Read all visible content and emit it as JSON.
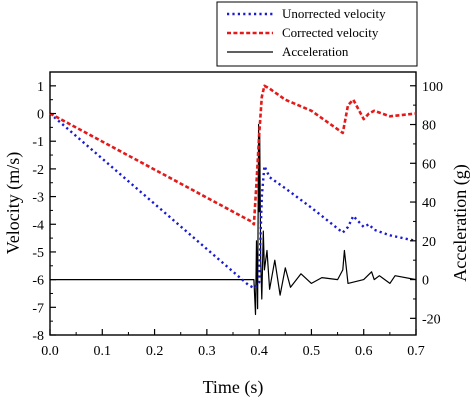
{
  "chart_data": {
    "type": "line",
    "title": "",
    "xlabel": "Time (s)",
    "ylabel_left": "Velocity (m/s)",
    "ylabel_right": "Acceleration (g)",
    "xlim": [
      0,
      0.7
    ],
    "ylim_left": [
      -8,
      1.5
    ],
    "ylim_right": [
      -28.6,
      107.1
    ],
    "x_ticks": [
      "0.0",
      "0.1",
      "0.2",
      "0.3",
      "0.4",
      "0.5",
      "0.6",
      "0.7"
    ],
    "y_left_ticks": [
      "1",
      "0",
      "-1",
      "-2",
      "-3",
      "-4",
      "-5",
      "-6",
      "-7",
      "-8"
    ],
    "y_right_ticks": [
      "100",
      "80",
      "60",
      "40",
      "20",
      "0",
      "-20"
    ],
    "grid": false,
    "legend_position": "top-right",
    "series": [
      {
        "name": "Unorrected velocity",
        "axis": "left",
        "color": "#1a1ad6",
        "style": "dotted",
        "x": [
          0,
          0.38,
          0.39,
          0.4,
          0.405,
          0.41,
          0.42,
          0.45,
          0.5,
          0.56,
          0.57,
          0.58,
          0.6,
          0.61,
          0.62,
          0.65,
          0.7
        ],
        "y": [
          0,
          -6.2,
          -6.3,
          -6.1,
          -3.0,
          -1.9,
          -2.3,
          -2.7,
          -3.4,
          -4.3,
          -4.1,
          -3.7,
          -4.1,
          -4.0,
          -4.2,
          -4.4,
          -4.6
        ]
      },
      {
        "name": "Corrected velocity",
        "axis": "left",
        "color": "#e41a1a",
        "style": "dashed",
        "x": [
          0,
          0.385,
          0.39,
          0.395,
          0.4,
          0.405,
          0.41,
          0.42,
          0.45,
          0.5,
          0.56,
          0.57,
          0.58,
          0.6,
          0.61,
          0.62,
          0.65,
          0.7
        ],
        "y": [
          0,
          -3.9,
          -4.0,
          -2.5,
          -0.8,
          0.6,
          1.0,
          0.9,
          0.5,
          0.1,
          -0.7,
          0.3,
          0.5,
          -0.2,
          0.0,
          0.1,
          -0.1,
          0.0
        ]
      },
      {
        "name": "Acceleration",
        "axis": "right",
        "color": "#000000",
        "style": "solid",
        "x": [
          0,
          0.38,
          0.39,
          0.393,
          0.395,
          0.397,
          0.399,
          0.4,
          0.401,
          0.403,
          0.405,
          0.408,
          0.41,
          0.415,
          0.42,
          0.43,
          0.44,
          0.45,
          0.46,
          0.48,
          0.5,
          0.52,
          0.55,
          0.56,
          0.563,
          0.566,
          0.57,
          0.6,
          0.615,
          0.62,
          0.63,
          0.65,
          0.66,
          0.7
        ],
        "y": [
          0,
          0,
          0,
          -18,
          20,
          -15,
          80,
          35,
          75,
          10,
          -10,
          25,
          5,
          15,
          -5,
          10,
          -8,
          6,
          -4,
          3,
          -2,
          1,
          0,
          5,
          15,
          8,
          -2,
          0,
          4,
          0,
          2,
          -2,
          2,
          0
        ]
      }
    ]
  }
}
